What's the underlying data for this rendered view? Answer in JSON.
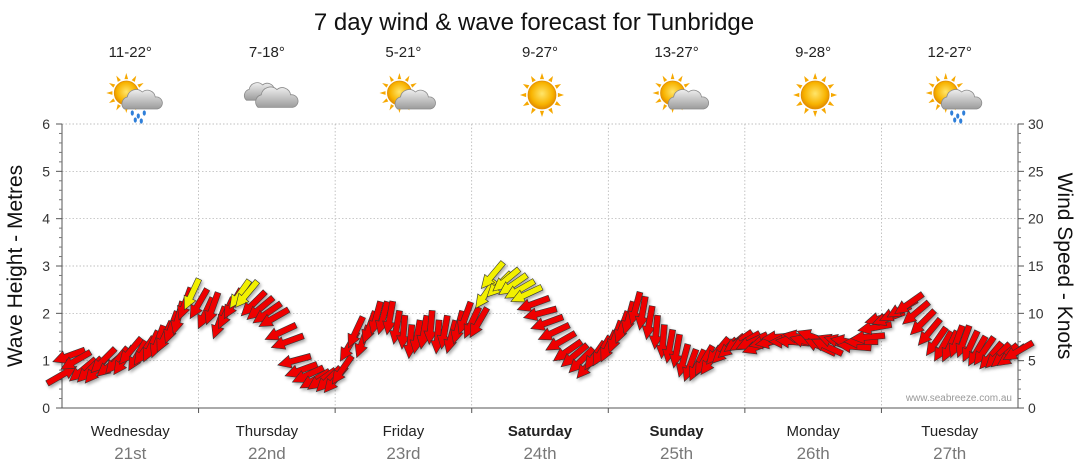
{
  "chart_data": {
    "type": "scatter",
    "title": "7 day wind & wave forecast for Tunbridge",
    "ylabel_left": "Wave Height - Metres",
    "ylabel_right": "Wind Speed - Knots",
    "ylim_left": [
      0,
      6
    ],
    "ylim_right": [
      0,
      30
    ],
    "left_ticks": [
      "0",
      "1",
      "2",
      "3",
      "4",
      "5",
      "6"
    ],
    "right_ticks": [
      "0",
      "5",
      "10",
      "15",
      "20",
      "25",
      "30"
    ],
    "grid": true,
    "watermark": "www.seabreeze.com.au",
    "days": [
      {
        "name": "Wednesday",
        "date": "21st",
        "temp": "11-22°",
        "icon": "sun-cloud-rain-icon",
        "bold": false
      },
      {
        "name": "Thursday",
        "date": "22nd",
        "temp": "7-18°",
        "icon": "cloud-icon",
        "bold": false
      },
      {
        "name": "Friday",
        "date": "23rd",
        "temp": "5-21°",
        "icon": "sun-cloud-icon",
        "bold": false
      },
      {
        "name": "Saturday",
        "date": "24th",
        "temp": "9-27°",
        "icon": "sun-icon",
        "bold": true
      },
      {
        "name": "Sunday",
        "date": "25th",
        "temp": "13-27°",
        "icon": "sun-cloud-icon",
        "bold": true
      },
      {
        "name": "Monday",
        "date": "26th",
        "temp": "9-28°",
        "icon": "sun-icon",
        "bold": false
      },
      {
        "name": "Tuesday",
        "date": "27th",
        "temp": "12-27°",
        "icon": "sun-cloud-rain-icon",
        "bold": false
      }
    ],
    "series": [
      {
        "x_days": [
          0,
          0.05,
          0.1,
          0.15,
          0.2,
          0.25,
          0.3,
          0.35,
          0.4,
          0.45,
          0.5,
          0.55,
          0.6,
          0.65,
          0.7,
          0.75,
          0.8,
          0.85,
          0.9,
          0.95,
          1.0,
          1.05,
          1.1,
          1.15,
          1.2,
          1.25,
          1.3,
          1.35,
          1.4,
          1.45,
          1.5,
          1.55,
          1.6,
          1.65,
          1.7,
          1.75,
          1.8,
          1.85,
          1.9,
          1.95,
          2.0,
          2.05,
          2.1,
          2.15,
          2.2,
          2.25,
          2.3,
          2.35,
          2.4,
          2.45,
          2.5,
          2.55,
          2.6,
          2.65,
          2.7,
          2.75,
          2.8,
          2.85,
          2.9,
          2.95,
          3.0,
          3.05,
          3.1,
          3.15,
          3.2,
          3.25,
          3.3,
          3.35,
          3.4,
          3.45,
          3.5,
          3.55,
          3.6,
          3.65,
          3.7,
          3.75,
          3.8,
          3.85,
          3.9,
          3.95,
          4.0,
          4.05,
          4.1,
          4.15,
          4.2,
          4.25,
          4.3,
          4.35,
          4.4,
          4.45,
          4.5,
          4.55,
          4.6,
          4.65,
          4.7,
          4.75,
          4.8,
          4.85,
          4.9,
          4.95,
          5.0,
          5.05,
          5.1,
          5.15,
          5.2,
          5.25,
          5.3,
          5.35,
          5.4,
          5.45,
          5.5,
          5.55,
          5.6,
          5.65,
          5.7,
          5.75,
          5.8,
          5.85,
          5.9,
          5.95,
          6.0,
          6.05,
          6.1,
          6.15,
          6.2,
          6.25,
          6.3,
          6.35,
          6.4,
          6.45,
          6.5,
          6.55,
          6.6,
          6.65,
          6.7,
          6.75,
          6.8,
          6.85,
          6.9,
          6.95,
          7.0
        ],
        "wave_m": [
          0.8,
          1.3,
          1.2,
          0.9,
          0.8,
          0.8,
          1.0,
          0.9,
          1.0,
          1.0,
          1.1,
          1.0,
          1.1,
          1.0,
          1.2,
          1.3,
          1.6,
          1.9,
          2.2,
          2.5,
          2.2,
          2.0,
          2.1,
          1.8,
          1.9,
          2.1,
          2.3,
          2.2,
          1.9,
          1.9,
          1.8,
          1.6,
          1.3,
          1.1,
          0.8,
          0.7,
          0.7,
          0.6,
          0.6,
          0.6,
          0.6,
          0.7,
          1.2,
          1.5,
          1.3,
          1.6,
          1.7,
          1.7,
          1.7,
          1.6,
          1.5,
          1.3,
          1.4,
          1.5,
          1.5,
          1.3,
          1.4,
          1.3,
          1.5,
          1.7,
          1.5,
          1.5,
          2.2,
          2.6,
          2.6,
          2.6,
          2.7,
          2.6,
          2.5,
          2.4,
          2.2,
          2.0,
          1.8,
          1.6,
          1.4,
          1.3,
          1.2,
          1.1,
          1.2,
          1.3,
          1.4,
          1.6,
          1.8,
          2.0,
          2.1,
          2.0,
          1.8,
          1.6,
          1.4,
          1.3,
          1.2,
          1.0,
          0.9,
          0.9,
          1.0,
          1.0,
          1.2,
          1.1,
          1.2,
          1.3,
          1.3,
          1.3,
          1.2,
          1.3,
          1.3,
          1.4,
          1.3,
          1.3,
          1.4,
          1.3,
          1.4,
          1.2,
          1.2,
          1.3,
          1.3,
          1.3,
          1.2,
          1.3,
          1.4,
          1.6,
          1.8,
          1.8,
          1.9,
          2.0,
          2.1,
          1.9,
          1.7,
          1.5,
          1.3,
          1.2,
          1.2,
          1.3,
          1.4,
          1.3,
          1.2,
          1.2,
          1.1,
          1.1,
          1.1,
          1.1,
          1.2
        ],
        "wind_kn": [
          3.5,
          5.5,
          5,
          4,
          4,
          4,
          5,
          4.5,
          5,
          5,
          6,
          5.5,
          6,
          6.5,
          7,
          7.5,
          8.5,
          9.5,
          11,
          12,
          11,
          10,
          10.5,
          9,
          10,
          11,
          12,
          12,
          11,
          10.5,
          10,
          9.5,
          8,
          7,
          5,
          4,
          3.5,
          3,
          3,
          3,
          3,
          4,
          6.5,
          8,
          7,
          8.5,
          9.5,
          9.5,
          9.5,
          8.5,
          8,
          7,
          7.5,
          8,
          8.5,
          7.5,
          8,
          7.5,
          8.5,
          9.5,
          9,
          9,
          12,
          14,
          13,
          13.5,
          13,
          12.5,
          12,
          11,
          10,
          9,
          8,
          7,
          6,
          5.5,
          5,
          4.5,
          5.5,
          6,
          6.5,
          7.5,
          8.5,
          9.5,
          10.5,
          10,
          9,
          8,
          7,
          6.5,
          6,
          5,
          4.5,
          4.5,
          5,
          5,
          6,
          6,
          6.5,
          7,
          7,
          7,
          6.5,
          7,
          7,
          7.5,
          7,
          7,
          7.5,
          7,
          7.5,
          6.5,
          6.5,
          7,
          7,
          7,
          6.5,
          7,
          7.5,
          8.5,
          9.5,
          9.5,
          10,
          10.5,
          11,
          10,
          9,
          8,
          7,
          6.5,
          6.5,
          7,
          7,
          6.5,
          6,
          6,
          5.5,
          5.5,
          5.5,
          5.5,
          6
        ],
        "wind_dir_deg": [
          60,
          250,
          240,
          230,
          225,
          220,
          225,
          230,
          220,
          215,
          220,
          210,
          215,
          205,
          200,
          205,
          200,
          195,
          200,
          205,
          210,
          205,
          200,
          200,
          205,
          210,
          215,
          220,
          225,
          230,
          235,
          240,
          245,
          250,
          255,
          250,
          245,
          240,
          235,
          225,
          220,
          215,
          210,
          205,
          200,
          200,
          195,
          195,
          190,
          190,
          185,
          185,
          190,
          190,
          185,
          185,
          190,
          195,
          195,
          200,
          205,
          210,
          215,
          220,
          225,
          230,
          235,
          240,
          245,
          250,
          255,
          250,
          245,
          240,
          235,
          230,
          225,
          220,
          215,
          210,
          205,
          200,
          200,
          195,
          195,
          190,
          190,
          185,
          185,
          190,
          190,
          195,
          200,
          205,
          210,
          215,
          220,
          225,
          230,
          235,
          240,
          245,
          250,
          255,
          260,
          265,
          270,
          275,
          280,
          285,
          290,
          295,
          295,
          290,
          285,
          280,
          275,
          270,
          265,
          260,
          255,
          250,
          245,
          240,
          235,
          230,
          225,
          220,
          215,
          210,
          205,
          200,
          200,
          205,
          210,
          215,
          220,
          225,
          230,
          235,
          240
        ]
      }
    ]
  }
}
